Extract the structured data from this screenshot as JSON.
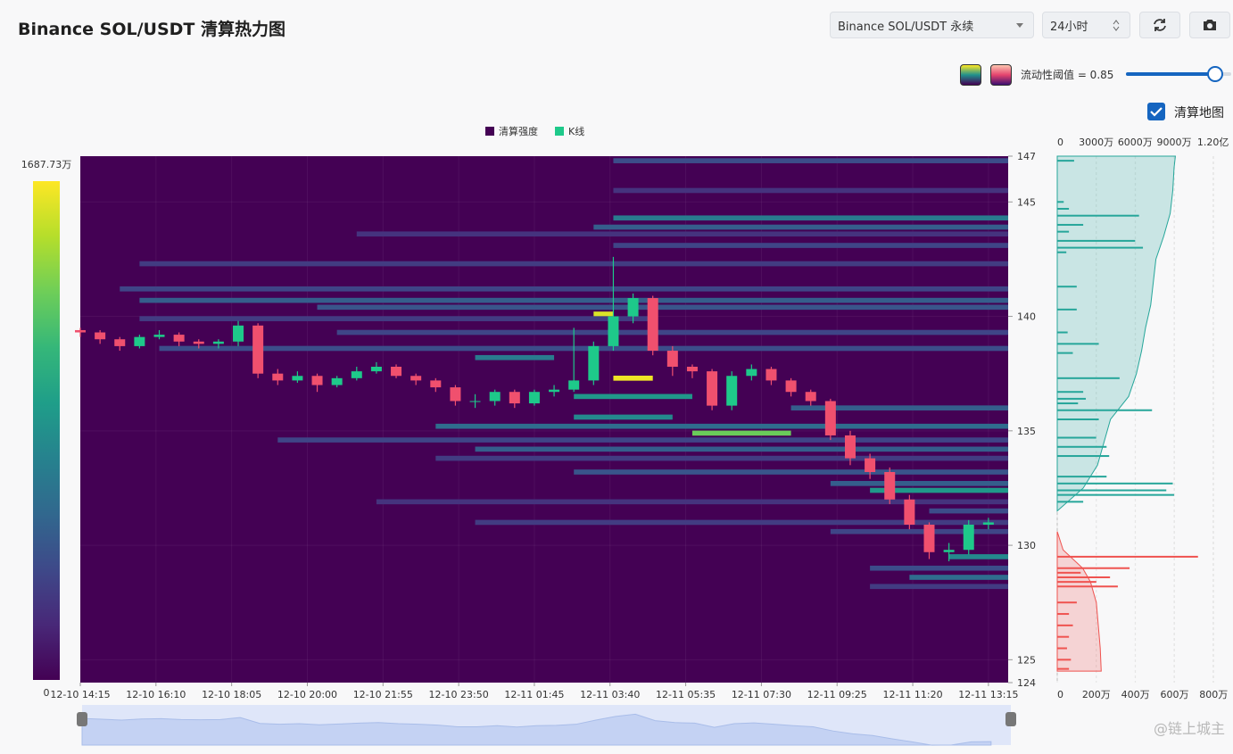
{
  "header": {
    "title": "Binance SOL/USDT 清算热力图"
  },
  "controls": {
    "market": "Binance SOL/USDT 永续",
    "period": "24小时",
    "threshold": {
      "text": "流动性阈值 = 0.85",
      "value": 0.85
    },
    "map_toggle": {
      "label": "清算地图",
      "checked": true
    }
  },
  "watermark": "@链上城主",
  "chart_data": [
    {
      "type": "candlestick",
      "legend": "top",
      "grid": true,
      "xlim": [
        0,
        47
      ],
      "ylim": [
        124,
        147
      ],
      "xticks": [
        {
          "value": 0,
          "label": "12-10 14:15"
        },
        {
          "value": 3.833,
          "label": "12-10 16:10"
        },
        {
          "value": 7.667,
          "label": "12-10 18:05"
        },
        {
          "value": 11.5,
          "label": "12-10 20:00"
        },
        {
          "value": 15.333,
          "label": "12-10 21:55"
        },
        {
          "value": 19.167,
          "label": "12-10 23:50"
        },
        {
          "value": 23,
          "label": "12-11 01:45"
        },
        {
          "value": 26.833,
          "label": "12-11 03:40"
        },
        {
          "value": 30.667,
          "label": "12-11 05:35"
        },
        {
          "value": 34.5,
          "label": "12-11 07:30"
        },
        {
          "value": 38.333,
          "label": "12-11 09:25"
        },
        {
          "value": 42.167,
          "label": "12-11 11:20"
        },
        {
          "value": 46,
          "label": "12-11 13:15"
        }
      ],
      "yticks": [
        147,
        145,
        140,
        135,
        130,
        125,
        124
      ],
      "colorbar": {
        "colormap": "viridis",
        "zlim": [
          0,
          1687.73
        ],
        "ticks": [
          0,
          {
            "value": 1687.73,
            "label": "1687.73万"
          }
        ]
      },
      "series": [
        {
          "name": "清算强度",
          "type": "heatmap",
          "color": "#440154",
          "levels": [
            146.8,
            145.5,
            144.3,
            143.9,
            143.6,
            143.1,
            142.3,
            141.2,
            140.7,
            140.4,
            140.1,
            139.9,
            139.3,
            138.6,
            138.2,
            137.3,
            136.5,
            136.0,
            135.6,
            135.2,
            134.9,
            134.6,
            134.2,
            133.8,
            133.2,
            132.7,
            132.4,
            131.9,
            131.5,
            131.0,
            130.6,
            129.5,
            129.0,
            128.6,
            128.2
          ],
          "starts": [
            27,
            27,
            27,
            26,
            14,
            27,
            3,
            2,
            3,
            12,
            26,
            3,
            13,
            4,
            20,
            27,
            25,
            36,
            25,
            18,
            31,
            10,
            20,
            18,
            25,
            38,
            40,
            15,
            43,
            20,
            38,
            44,
            40,
            42,
            40
          ],
          "ends": [
            47,
            47,
            47,
            47,
            47,
            47,
            47,
            47,
            47,
            47,
            27,
            29,
            47,
            47,
            24,
            29,
            31,
            47,
            30,
            47,
            36,
            47,
            47,
            47,
            47,
            47,
            47,
            47,
            47,
            47,
            47,
            47,
            47,
            47,
            47
          ],
          "values": [
            400,
            250,
            700,
            500,
            250,
            350,
            300,
            350,
            500,
            450,
            1600,
            300,
            350,
            400,
            700,
            1650,
            900,
            500,
            800,
            600,
            1300,
            350,
            500,
            300,
            450,
            500,
            900,
            250,
            400,
            300,
            350,
            800,
            400,
            600,
            300
          ]
        },
        {
          "name": "K线",
          "type": "candlestick",
          "color": "#1ec98a",
          "down_color": "#f0506e",
          "x": [
            0,
            1,
            2,
            3,
            4,
            5,
            6,
            7,
            8,
            9,
            10,
            11,
            12,
            13,
            14,
            15,
            16,
            17,
            18,
            19,
            20,
            21,
            22,
            23,
            24,
            25,
            26,
            27,
            28,
            29,
            30,
            31,
            32,
            33,
            34,
            35,
            36,
            37,
            38,
            39,
            40,
            41,
            42,
            43,
            44,
            45,
            46
          ],
          "open": [
            139.4,
            139.3,
            139.0,
            138.7,
            139.1,
            139.2,
            138.9,
            138.8,
            138.9,
            139.6,
            137.5,
            137.2,
            137.4,
            137.0,
            137.3,
            137.6,
            137.8,
            137.4,
            137.2,
            136.9,
            136.3,
            136.3,
            136.7,
            136.2,
            136.7,
            136.8,
            137.2,
            138.7,
            140.0,
            140.8,
            138.5,
            137.8,
            137.6,
            136.1,
            137.4,
            137.7,
            137.2,
            136.7,
            136.3,
            134.8,
            133.8,
            133.2,
            132.0,
            130.9,
            129.7,
            129.8,
            130.9
          ],
          "high": [
            139.5,
            139.4,
            139.1,
            139.2,
            139.4,
            139.3,
            139.0,
            139.0,
            139.8,
            139.7,
            137.7,
            137.6,
            137.5,
            137.4,
            137.8,
            138.0,
            137.9,
            137.5,
            137.3,
            137.0,
            136.6,
            136.8,
            136.8,
            136.8,
            137.0,
            139.5,
            138.9,
            142.6,
            141.0,
            140.9,
            138.7,
            137.9,
            137.7,
            137.6,
            137.9,
            137.8,
            137.3,
            136.8,
            136.4,
            135.0,
            134.0,
            133.4,
            132.2,
            131.0,
            130.1,
            131.1,
            131.2
          ],
          "low": [
            139.1,
            138.8,
            138.5,
            138.6,
            139.0,
            138.7,
            138.6,
            138.6,
            138.7,
            137.3,
            137.0,
            137.1,
            136.7,
            136.9,
            137.2,
            137.5,
            137.3,
            137.0,
            136.7,
            136.1,
            136.0,
            136.1,
            136.0,
            136.1,
            136.5,
            136.7,
            137.0,
            138.5,
            139.7,
            138.3,
            137.4,
            137.3,
            135.9,
            135.9,
            137.2,
            137.0,
            136.5,
            136.1,
            134.6,
            133.5,
            132.9,
            131.8,
            130.7,
            129.4,
            129.3,
            129.6,
            130.7
          ],
          "close": [
            139.3,
            139.0,
            138.7,
            139.1,
            139.2,
            138.9,
            138.8,
            138.9,
            139.6,
            137.5,
            137.2,
            137.4,
            137.0,
            137.3,
            137.6,
            137.8,
            137.4,
            137.2,
            136.9,
            136.3,
            136.3,
            136.7,
            136.2,
            136.7,
            136.8,
            137.2,
            138.7,
            140.0,
            140.8,
            138.5,
            137.8,
            137.6,
            136.1,
            137.4,
            137.7,
            137.2,
            136.7,
            136.3,
            134.8,
            133.8,
            133.2,
            132.0,
            130.9,
            129.7,
            129.8,
            130.9,
            131.0
          ]
        }
      ]
    },
    {
      "type": "bar",
      "orientation": "horizontal",
      "ylim": [
        124,
        147
      ],
      "xlim": [
        0,
        13400
      ],
      "xticks": [
        0,
        {
          "value": 3000,
          "label": "3000万"
        },
        {
          "value": 6000,
          "label": "6000万"
        },
        {
          "value": 9000,
          "label": "9000万"
        },
        {
          "value": 12000,
          "label": "1.20亿"
        }
      ],
      "x2lim": [
        0,
        890
      ],
      "x2ticks": [
        0,
        {
          "value": 200,
          "label": "200万"
        },
        {
          "value": 400,
          "label": "400万"
        },
        {
          "value": 600,
          "label": "600万"
        },
        {
          "value": 800,
          "label": "800万"
        }
      ],
      "series": [
        {
          "type": "area",
          "axis": "x",
          "color": "#26a69a",
          "y": [
            131.5,
            132.5,
            133.5,
            134.5,
            135.5,
            136.5,
            137.5,
            138.5,
            139.5,
            140.5,
            141.5,
            142.5,
            143.5,
            144.5,
            145.5,
            146.5,
            147
          ],
          "values": [
            0,
            2000,
            3100,
            3600,
            4100,
            5500,
            6100,
            6500,
            6800,
            7200,
            7400,
            7600,
            8200,
            8700,
            8900,
            9000,
            9100
          ]
        },
        {
          "type": "bar",
          "axis": "x",
          "color": "#26a69a",
          "y": [
            146.8,
            145.0,
            144.7,
            144.4,
            144.0,
            143.7,
            143.3,
            143.0,
            142.8,
            141.3,
            140.3,
            139.3,
            138.8,
            138.4,
            137.3,
            136.7,
            136.4,
            136.2,
            135.9,
            135.5,
            134.7,
            134.3,
            133.9,
            133.0,
            132.7,
            132.4,
            132.2,
            131.9
          ],
          "values": [
            1300,
            500,
            900,
            6300,
            2000,
            900,
            6000,
            6600,
            700,
            1500,
            1500,
            800,
            3200,
            1200,
            4800,
            2000,
            2200,
            1600,
            7300,
            3200,
            3000,
            3800,
            4000,
            3800,
            8900,
            8400,
            9000,
            2000
          ]
        },
        {
          "type": "area",
          "axis": "x2",
          "color": "#ef5350",
          "y": [
            130.6,
            129.8,
            129.0,
            128.4,
            127.5,
            126.5,
            125.5,
            124.5
          ],
          "values": [
            0,
            30,
            130,
            170,
            200,
            210,
            220,
            225
          ]
        },
        {
          "type": "bar",
          "axis": "x2",
          "color": "#ef5350",
          "y": [
            129.5,
            129.0,
            128.8,
            128.6,
            128.4,
            128.2,
            127.5,
            127.0,
            126.5,
            126.0,
            125.5,
            125.0,
            124.6
          ],
          "values": [
            720,
            370,
            120,
            270,
            200,
            310,
            100,
            60,
            80,
            60,
            50,
            70,
            60
          ]
        }
      ]
    }
  ]
}
